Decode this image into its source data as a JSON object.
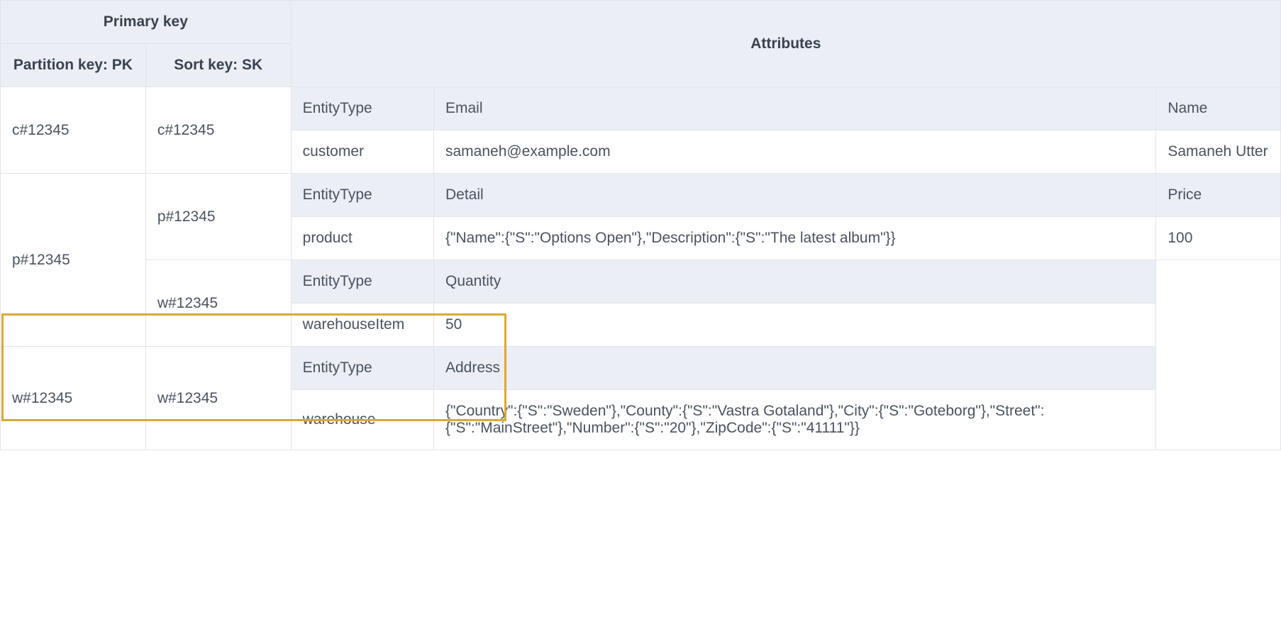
{
  "headers": {
    "primary_key": "Primary key",
    "partition_key": "Partition key: PK",
    "sort_key": "Sort key: SK",
    "attributes": "Attributes"
  },
  "rows": [
    {
      "pk": "c#12345",
      "sk": "c#12345",
      "attr_headers": [
        "EntityType",
        "Email",
        "Name"
      ],
      "attr_values": [
        "customer",
        "samaneh@example.com",
        "Samaneh Utter"
      ]
    },
    {
      "pk": "p#12345",
      "sk": "p#12345",
      "attr_headers": [
        "EntityType",
        "Detail",
        "Price"
      ],
      "attr_values": [
        "product",
        "{\"Name\":{\"S\":\"Options Open\"},\"Description\":{\"S\":\"The latest album\"}}",
        "100"
      ]
    },
    {
      "pk": "",
      "sk": "w#12345",
      "attr_headers": [
        "EntityType",
        "Quantity",
        ""
      ],
      "attr_values": [
        "warehouseItem",
        "50",
        ""
      ]
    },
    {
      "pk": "w#12345",
      "sk": "w#12345",
      "attr_headers": [
        "EntityType",
        "Address",
        ""
      ],
      "attr_values": [
        "warehouse",
        "{\"Country\":{\"S\":\"Sweden\"},\"County\":{\"S\":\"Vastra Gotaland\"},\"City\":{\"S\":\"Goteborg\"},\"Street\":{\"S\":\"MainStreet\"},\"Number\":{\"S\":\"20\"},\"ZipCode\":{\"S\":\"41111\"}}",
        ""
      ]
    }
  ],
  "highlight": {
    "border_color": "#d8a937"
  },
  "colors": {
    "header_bg": "#ebeef5",
    "border": "#e1e4ea",
    "text": "#4a5260",
    "header_text": "#3a4150"
  }
}
